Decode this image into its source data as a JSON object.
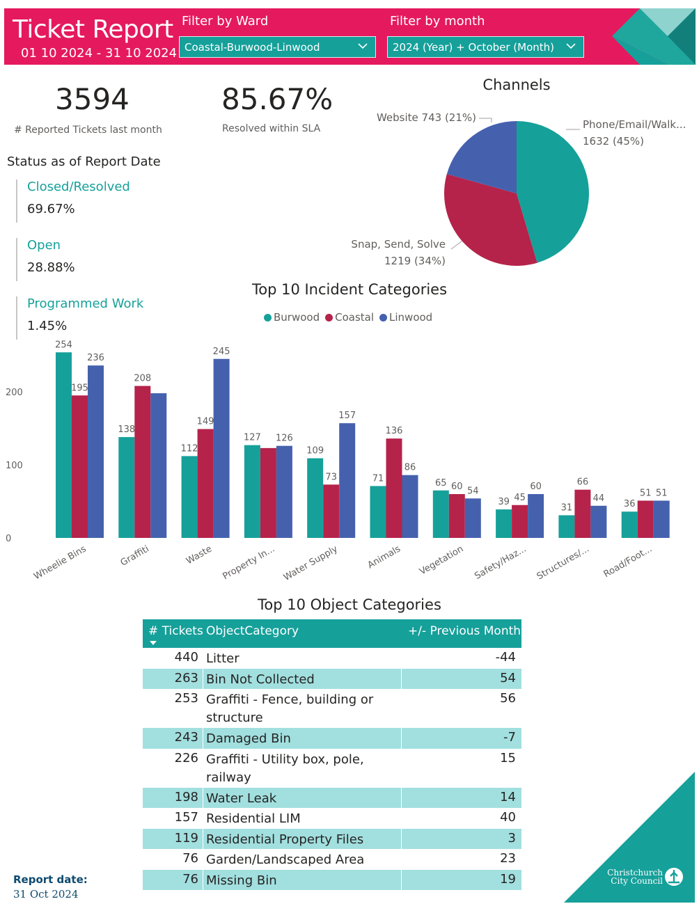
{
  "header": {
    "title": "Ticket Report",
    "date_range": "01 10 2024 - 31 10 2024",
    "ward_filter_label": "Filter by Ward",
    "ward_filter_value": "Coastal-Burwood-Linwood",
    "month_filter_label": "Filter by month",
    "month_filter_value": "2024 (Year) + October (Month)"
  },
  "kpis": {
    "reported_value": "3594",
    "reported_label": "# Reported Tickets last month",
    "sla_value": "85.67%",
    "sla_label": "Resolved within SLA"
  },
  "status": {
    "title": "Status as of Report Date",
    "items": [
      {
        "name": "Closed/Resolved",
        "value": "69.67%"
      },
      {
        "name": "Open",
        "value": "28.88%"
      },
      {
        "name": "Programmed Work",
        "value": "1.45%"
      }
    ]
  },
  "colors": {
    "accent_pink": "#e5195e",
    "teal": "#16a09a",
    "crimson": "#b5234a",
    "blue": "#4561ae",
    "row_alt": "#a2dfdf"
  },
  "chart_data": [
    {
      "type": "pie",
      "title": "Channels",
      "slices": [
        {
          "label": "Phone/Email/Walk...",
          "value": 1632,
          "percent": "45%",
          "color": "#16a09a"
        },
        {
          "label": "Snap, Send, Solve",
          "value": 1219,
          "percent": "34%",
          "color": "#b5234a"
        },
        {
          "label": "Website",
          "value": 743,
          "percent": "21%",
          "color": "#4561ae"
        }
      ]
    },
    {
      "type": "bar",
      "title": "Top 10 Incident Categories",
      "categories": [
        "Wheelie Bins",
        "Graffiti",
        "Waste",
        "Property In...",
        "Water Supply",
        "Animals",
        "Vegetation",
        "Safety/Haz...",
        "Structures/...",
        "Road/Foot..."
      ],
      "series": [
        {
          "name": "Burwood",
          "color": "#16a09a",
          "values": [
            254,
            138,
            112,
            127,
            109,
            71,
            65,
            39,
            31,
            36
          ],
          "labels": [
            "254",
            "138",
            "112",
            "127",
            "109",
            "71",
            "65",
            "39",
            "31",
            "36"
          ]
        },
        {
          "name": "Coastal",
          "color": "#b5234a",
          "values": [
            195,
            208,
            149,
            123,
            73,
            136,
            60,
            45,
            66,
            51
          ],
          "labels": [
            "195",
            "208",
            "149",
            "",
            "73",
            "136",
            "60",
            "45",
            "66",
            "51"
          ]
        },
        {
          "name": "Linwood",
          "color": "#4561ae",
          "values": [
            236,
            198,
            245,
            126,
            157,
            86,
            54,
            60,
            44,
            51
          ],
          "labels": [
            "236",
            "",
            "245",
            "126",
            "157",
            "86",
            "54",
            "60",
            "44",
            "51"
          ]
        }
      ],
      "yticks": [
        0,
        100,
        200
      ],
      "ylim": [
        0,
        260
      ],
      "legend": "top-center",
      "grid": false
    }
  ],
  "table": {
    "title": "Top 10 Object Categories",
    "headers": [
      "# Tickets",
      "ObjectCategory",
      "+/- Previous Month"
    ],
    "rows": [
      {
        "tickets": "440",
        "category": "Litter",
        "diff": "-44"
      },
      {
        "tickets": "263",
        "category": "Bin Not Collected",
        "diff": "54"
      },
      {
        "tickets": "253",
        "category": "Graffiti - Fence, building or structure",
        "diff": "56"
      },
      {
        "tickets": "243",
        "category": "Damaged Bin",
        "diff": "-7"
      },
      {
        "tickets": "226",
        "category": "Graffiti - Utility box, pole, railway",
        "diff": "15"
      },
      {
        "tickets": "198",
        "category": "Water Leak",
        "diff": "14"
      },
      {
        "tickets": "157",
        "category": "Residential LIM",
        "diff": "40"
      },
      {
        "tickets": "119",
        "category": "Residential Property Files",
        "diff": "3"
      },
      {
        "tickets": "76",
        "category": "Garden/Landscaped Area",
        "diff": "23"
      },
      {
        "tickets": "76",
        "category": "Missing Bin",
        "diff": "19"
      }
    ]
  },
  "footer": {
    "report_date_label": "Report date:",
    "report_date_value": "31 Oct 2024",
    "logo_line1": "Christchurch",
    "logo_line2": "City Council"
  }
}
